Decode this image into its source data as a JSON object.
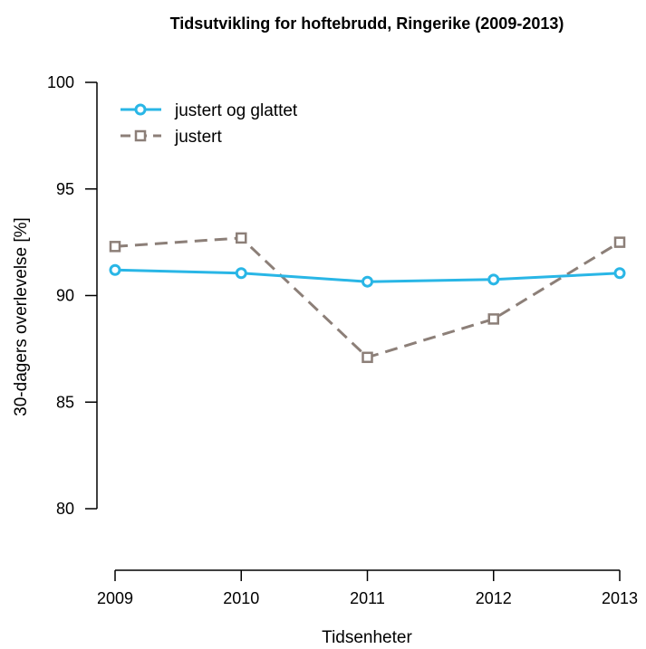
{
  "chart_data": {
    "type": "line",
    "title": "Tidsutvikling for hoftebrudd, Ringerike (2009-2013)",
    "xlabel": "Tidsenheter",
    "ylabel": "30-dagers overlevelse [%]",
    "categories": [
      "2009",
      "2010",
      "2011",
      "2012",
      "2013"
    ],
    "yticks": [
      80,
      85,
      90,
      95,
      100
    ],
    "ylim": [
      80,
      100
    ],
    "grid": false,
    "legend_position": "top-left",
    "series": [
      {
        "name": "justert og glattet",
        "values": [
          91.2,
          91.05,
          90.65,
          90.75,
          91.05
        ],
        "color": "#29b6e6",
        "style": "solid",
        "marker": "circle"
      },
      {
        "name": "justert",
        "values": [
          92.3,
          92.7,
          87.1,
          88.9,
          92.5
        ],
        "color": "#8c7f78",
        "style": "dashed",
        "marker": "square"
      }
    ]
  }
}
